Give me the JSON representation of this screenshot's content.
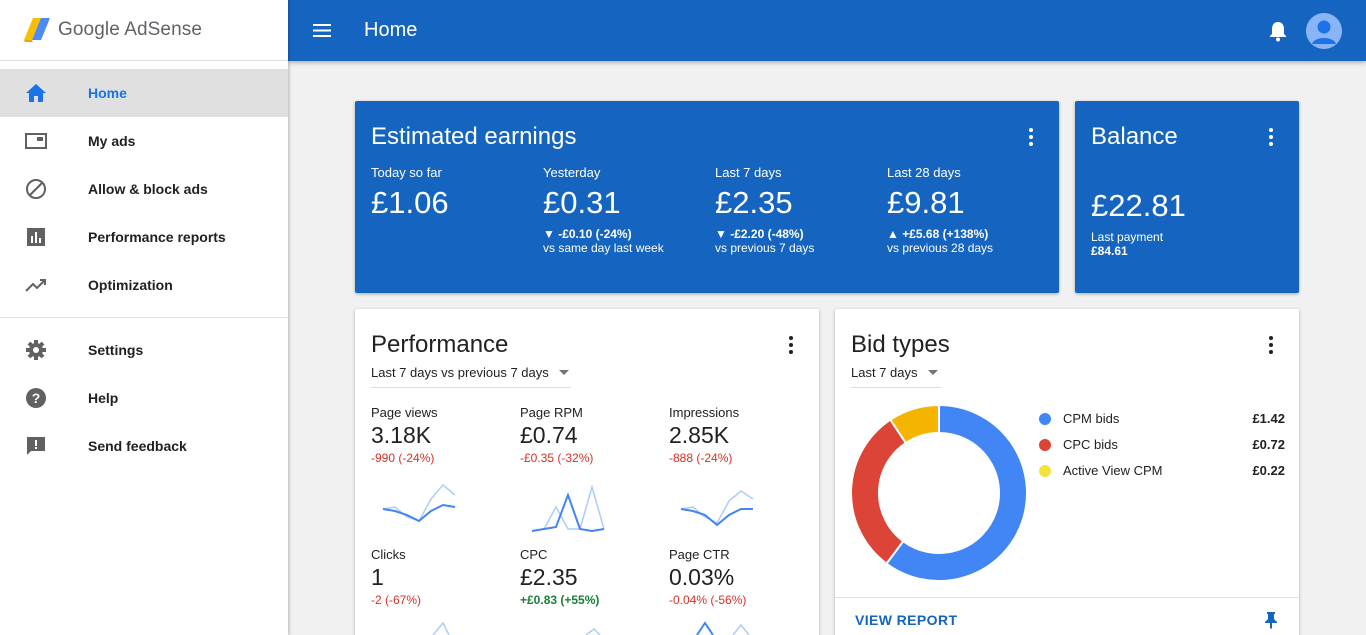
{
  "brand": {
    "name": "Google AdSense"
  },
  "sidebar": {
    "items": [
      {
        "label": "Home",
        "icon": "home-icon"
      },
      {
        "label": "My ads",
        "icon": "ads-icon"
      },
      {
        "label": "Allow & block ads",
        "icon": "block-icon"
      },
      {
        "label": "Performance reports",
        "icon": "bar-chart-icon"
      },
      {
        "label": "Optimization",
        "icon": "trending-up-icon"
      }
    ],
    "secondary": [
      {
        "label": "Settings",
        "icon": "gear-icon"
      },
      {
        "label": "Help",
        "icon": "help-icon"
      },
      {
        "label": "Send feedback",
        "icon": "feedback-icon"
      }
    ]
  },
  "header": {
    "title": "Home"
  },
  "earnings": {
    "title": "Estimated earnings",
    "metrics": [
      {
        "label": "Today so far",
        "value": "£1.06",
        "change": "",
        "compare": ""
      },
      {
        "label": "Yesterday",
        "value": "£0.31",
        "change": "▼ -£0.10 (-24%)",
        "compare": "vs same day last week"
      },
      {
        "label": "Last 7 days",
        "value": "£2.35",
        "change": "▼ -£2.20 (-48%)",
        "compare": "vs previous 7 days"
      },
      {
        "label": "Last 28 days",
        "value": "£9.81",
        "change": "▲ +£5.68 (+138%)",
        "compare": "vs previous 28 days"
      }
    ]
  },
  "balance": {
    "title": "Balance",
    "value": "£22.81",
    "last_payment_label": "Last payment",
    "last_payment_value": "£84.61"
  },
  "performance": {
    "title": "Performance",
    "range": "Last 7 days vs previous 7 days",
    "metrics": [
      {
        "label": "Page views",
        "value": "3.18K",
        "change": "-990 (-24%)",
        "trend": "neg"
      },
      {
        "label": "Page RPM",
        "value": "£0.74",
        "change": "-£0.35 (-32%)",
        "trend": "neg"
      },
      {
        "label": "Impressions",
        "value": "2.85K",
        "change": "-888 (-24%)",
        "trend": "neg"
      },
      {
        "label": "Clicks",
        "value": "1",
        "change": "-2 (-67%)",
        "trend": "neg"
      },
      {
        "label": "CPC",
        "value": "£2.35",
        "change": "+£0.83 (+55%)",
        "trend": "pos"
      },
      {
        "label": "Page CTR",
        "value": "0.03%",
        "change": "-0.04% (-56%)",
        "trend": "neg"
      }
    ]
  },
  "bid_types": {
    "title": "Bid types",
    "range": "Last 7 days",
    "items": [
      {
        "label": "CPM bids",
        "amount": "£1.42",
        "value": 1.42,
        "color": "#4285f4"
      },
      {
        "label": "CPC bids",
        "amount": "£0.72",
        "value": 0.72,
        "color": "#db4437"
      },
      {
        "label": "Active View CPM",
        "amount": "£0.22",
        "value": 0.22,
        "color": "#f4b400"
      }
    ],
    "view_report": "VIEW REPORT"
  },
  "colors": {
    "primary": "#1565c0",
    "accent": "#1a73e8",
    "negative": "#d93025",
    "positive": "#188038"
  }
}
